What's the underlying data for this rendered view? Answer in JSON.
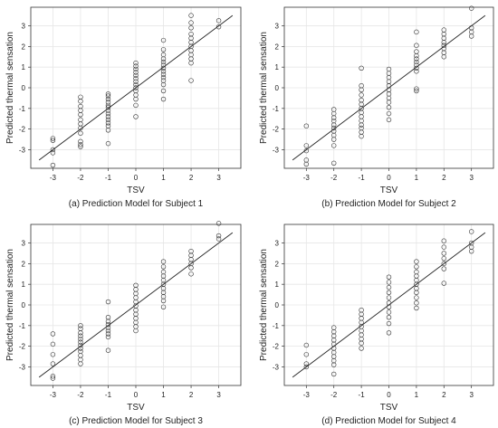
{
  "chart_data": [
    {
      "type": "scatter",
      "subtitle": "(a) Prediction Model for Subject 1",
      "xlabel": "TSV",
      "ylabel": "Predicted thermal sensation",
      "xlim": [
        -3.8,
        3.8
      ],
      "ylim": [
        -3.9,
        3.9
      ],
      "xticks": [
        -3,
        -2,
        -1,
        0,
        1,
        2,
        3
      ],
      "yticks": [
        -3,
        -2,
        -1,
        0,
        1,
        2,
        3
      ],
      "grid": true,
      "fit_line": {
        "x": [
          -3.5,
          3.5
        ],
        "y": [
          -3.5,
          3.5
        ]
      },
      "points": [
        {
          "x": -3,
          "values": [
            -3.75,
            -3.15,
            -3.0,
            -2.55,
            -2.45
          ]
        },
        {
          "x": -2,
          "values": [
            -2.85,
            -2.75,
            -2.6,
            -2.2,
            -1.95,
            -1.75,
            -1.55,
            -1.3,
            -1.1,
            -0.9,
            -0.65,
            -0.45
          ]
        },
        {
          "x": -1,
          "values": [
            -2.7,
            -2.05,
            -1.85,
            -1.7,
            -1.55,
            -1.4,
            -1.25,
            -1.1,
            -0.95,
            -0.85,
            -0.7,
            -0.55,
            -0.4,
            -0.3
          ]
        },
        {
          "x": 0,
          "values": [
            -1.4,
            -0.85,
            -0.55,
            -0.35,
            -0.15,
            0.0,
            0.15,
            0.3,
            0.45,
            0.6,
            0.75,
            0.9,
            1.05,
            1.2
          ]
        },
        {
          "x": 1,
          "values": [
            -0.55,
            -0.15,
            0.15,
            0.35,
            0.5,
            0.65,
            0.8,
            0.95,
            1.1,
            1.25,
            1.4,
            1.6,
            1.85,
            2.3
          ]
        },
        {
          "x": 2,
          "values": [
            0.35,
            1.2,
            1.4,
            1.6,
            1.8,
            2.0,
            2.2,
            2.4,
            2.6,
            2.9,
            3.15,
            3.5
          ]
        },
        {
          "x": 3,
          "values": [
            2.95,
            3.25
          ]
        }
      ]
    },
    {
      "type": "scatter",
      "subtitle": "(b) Prediction Model for Subject 2",
      "xlabel": "TSV",
      "ylabel": "Predicted thermal sensation",
      "xlim": [
        -3.8,
        3.8
      ],
      "ylim": [
        -3.9,
        3.9
      ],
      "xticks": [
        -3,
        -2,
        -1,
        0,
        1,
        2,
        3
      ],
      "yticks": [
        -3,
        -2,
        -1,
        0,
        1,
        2,
        3
      ],
      "grid": true,
      "fit_line": {
        "x": [
          -3.5,
          3.5
        ],
        "y": [
          -3.5,
          3.5
        ]
      },
      "points": [
        {
          "x": -3,
          "values": [
            -3.7,
            -3.5,
            -3.05,
            -2.8,
            -1.85
          ]
        },
        {
          "x": -2,
          "values": [
            -3.65,
            -2.8,
            -2.5,
            -2.3,
            -2.1,
            -1.95,
            -1.8,
            -1.6,
            -1.45,
            -1.25,
            -1.05
          ]
        },
        {
          "x": -1,
          "values": [
            -2.35,
            -2.15,
            -1.95,
            -1.8,
            -1.6,
            -1.4,
            -1.2,
            -1.0,
            -0.8,
            -0.6,
            -0.35,
            -0.1,
            0.1,
            0.95
          ]
        },
        {
          "x": 0,
          "values": [
            -1.55,
            -1.25,
            -0.95,
            -0.7,
            -0.5,
            -0.3,
            -0.1,
            0.1,
            0.3,
            0.5,
            0.7,
            0.9
          ]
        },
        {
          "x": 1,
          "values": [
            -0.15,
            -0.05,
            0.8,
            0.95,
            1.1,
            1.25,
            1.4,
            1.55,
            1.75,
            2.05,
            2.7
          ]
        },
        {
          "x": 2,
          "values": [
            1.5,
            1.7,
            1.9,
            2.05,
            2.2,
            2.4,
            2.6,
            2.8
          ]
        },
        {
          "x": 3,
          "values": [
            2.5,
            2.7,
            2.9,
            3.85
          ]
        }
      ]
    },
    {
      "type": "scatter",
      "subtitle": "(c) Prediction Model for Subject 3",
      "xlabel": "TSV",
      "ylabel": "Predicted thermal sensation",
      "xlim": [
        -3.8,
        3.8
      ],
      "ylim": [
        -3.9,
        3.9
      ],
      "xticks": [
        -3,
        -2,
        -1,
        0,
        1,
        2,
        3
      ],
      "yticks": [
        -3,
        -2,
        -1,
        0,
        1,
        2,
        3
      ],
      "grid": true,
      "fit_line": {
        "x": [
          -3.5,
          3.5
        ],
        "y": [
          -3.5,
          3.5
        ]
      },
      "points": [
        {
          "x": -3,
          "values": [
            -3.55,
            -3.45,
            -2.85,
            -2.4,
            -1.9,
            -1.4
          ]
        },
        {
          "x": -2,
          "values": [
            -2.85,
            -2.65,
            -2.45,
            -2.25,
            -2.1,
            -1.95,
            -1.8,
            -1.65,
            -1.5,
            -1.35,
            -1.15,
            -1.0
          ]
        },
        {
          "x": -1,
          "values": [
            -2.2,
            -1.55,
            -1.4,
            -1.25,
            -1.1,
            -0.95,
            -0.8,
            -0.6,
            0.15
          ]
        },
        {
          "x": 0,
          "values": [
            -1.25,
            -1.05,
            -0.85,
            -0.65,
            -0.45,
            -0.25,
            -0.05,
            0.15,
            0.35,
            0.55,
            0.75,
            0.95
          ]
        },
        {
          "x": 1,
          "values": [
            -0.1,
            0.2,
            0.4,
            0.6,
            0.8,
            1.0,
            1.2,
            1.4,
            1.6,
            1.85,
            2.1
          ]
        },
        {
          "x": 2,
          "values": [
            1.5,
            1.8,
            2.0,
            2.2,
            2.4,
            2.6
          ]
        },
        {
          "x": 3,
          "values": [
            3.2,
            3.35,
            3.95
          ]
        }
      ]
    },
    {
      "type": "scatter",
      "subtitle": "(d) Prediction Model for Subject 4",
      "xlabel": "TSV",
      "ylabel": "Predicted thermal sensation",
      "xlim": [
        -3.8,
        3.8
      ],
      "ylim": [
        -3.9,
        3.9
      ],
      "xticks": [
        -3,
        -2,
        -1,
        0,
        1,
        2,
        3
      ],
      "yticks": [
        -3,
        -2,
        -1,
        0,
        1,
        2,
        3
      ],
      "grid": true,
      "fit_line": {
        "x": [
          -3.5,
          3.5
        ],
        "y": [
          -3.5,
          3.5
        ]
      },
      "points": [
        {
          "x": -3,
          "values": [
            -3.0,
            -2.85,
            -2.4,
            -1.95
          ]
        },
        {
          "x": -2,
          "values": [
            -3.35,
            -2.9,
            -2.7,
            -2.5,
            -2.3,
            -2.1,
            -1.9,
            -1.7,
            -1.5,
            -1.3,
            -1.1
          ]
        },
        {
          "x": -1,
          "values": [
            -2.1,
            -1.85,
            -1.65,
            -1.45,
            -1.25,
            -1.05,
            -0.85,
            -0.65,
            -0.45,
            -0.25
          ]
        },
        {
          "x": 0,
          "values": [
            -1.35,
            -0.9,
            -0.6,
            -0.35,
            -0.1,
            0.1,
            0.35,
            0.6,
            0.85,
            1.1,
            1.35
          ]
        },
        {
          "x": 1,
          "values": [
            -0.15,
            0.1,
            0.35,
            0.6,
            0.8,
            1.0,
            1.2,
            1.4,
            1.6,
            1.85,
            2.1
          ]
        },
        {
          "x": 2,
          "values": [
            1.05,
            1.75,
            2.0,
            2.25,
            2.5,
            2.8,
            3.1
          ]
        },
        {
          "x": 3,
          "values": [
            2.6,
            2.8,
            3.0,
            3.55
          ]
        }
      ]
    }
  ]
}
